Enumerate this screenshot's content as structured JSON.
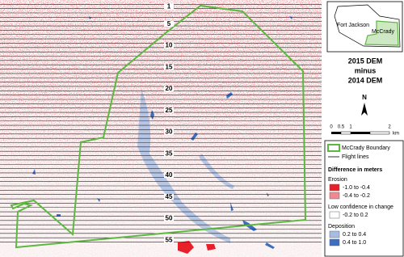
{
  "map": {
    "flight_line_labels": [
      "1",
      "5",
      "10",
      "15",
      "20",
      "25",
      "30",
      "35",
      "40",
      "45",
      "50",
      "55"
    ],
    "inset": {
      "labels": [
        "Fort Jackson",
        "McCrady"
      ]
    },
    "title": [
      "2015 DEM",
      "minus",
      "2014 DEM"
    ],
    "north": "N",
    "scale": {
      "ticks": [
        "0",
        "0.5",
        "1",
        "2"
      ],
      "unit": "km"
    },
    "legend": {
      "boundary": "McCrady Boundary",
      "flight_lines": "Flight lines",
      "heading": "Difference in meters",
      "erosion": {
        "title": "Erosion",
        "items": [
          {
            "label": "-1.0 to -0.4",
            "color": "#e8202a"
          },
          {
            "label": "-0.4 to -0.2",
            "color": "#f08a8e"
          }
        ]
      },
      "low": {
        "title": "Low confidence in change",
        "items": [
          {
            "label": "-0.2 to 0.2",
            "color": "#ffffff"
          }
        ]
      },
      "deposition": {
        "title": "Deposition",
        "items": [
          {
            "label": "0.2 to 0.4",
            "color": "#a6bde3"
          },
          {
            "label": "0.4 to 1.0",
            "color": "#3d6fc0"
          }
        ]
      }
    }
  }
}
